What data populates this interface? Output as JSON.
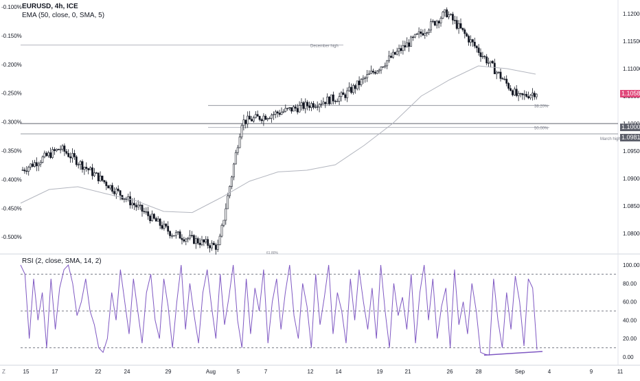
{
  "header": {
    "symbol": "EURUSD, 4h, ICE",
    "indicator": "EMA (50, close, 0, SMA, 5)",
    "rsi_title": "RSI (2, close, SMA, 14, 2)"
  },
  "badges": {
    "price": "1.10580",
    "level1": "1.10000",
    "level2": "1.09813",
    "price_color": "#e0487a",
    "level_color": "#5d606b"
  },
  "annotations": {
    "december_high": "December high",
    "fib_382": "38.20%",
    "fib_50": "50.00%",
    "march_high": "March high",
    "fib_low": "61.80%"
  },
  "chart_data": [
    {
      "type": "candlestick",
      "title": "EURUSD, 4h, ICE",
      "y_right_ticks": [
        "1.12000",
        "1.11500",
        "1.11000",
        "1.10500",
        "1.10000",
        "1.09500",
        "1.09000",
        "1.08500",
        "1.08000"
      ],
      "y_left_ticks": [
        "-0.100%",
        "-0.150%",
        "-0.200%",
        "-0.250%",
        "-0.300%",
        "-0.350%",
        "-0.400%",
        "-0.450%",
        "-0.500%"
      ],
      "ylim": [
        1.0765,
        1.1215
      ],
      "x_tick_labels": [
        "15",
        "17",
        "22",
        "24",
        "29",
        "Aug",
        "5",
        "7",
        "12",
        "14",
        "19",
        "21",
        "26",
        "28",
        "Sep",
        "4",
        "9",
        "11"
      ],
      "levels": [
        {
          "name": "December high",
          "price": 1.1143
        },
        {
          "name": "38.20%",
          "price": 1.1033
        },
        {
          "name": "50.00%",
          "price": 1.0993
        },
        {
          "name": "March high",
          "price": 1.09813
        },
        {
          "name": "1.10000",
          "price": 1.1
        }
      ],
      "key_points": [
        {
          "label": "start",
          "price": 1.0915
        },
        {
          "label": "mid-July high",
          "price": 1.0955
        },
        {
          "label": "late-July low",
          "price": 1.08
        },
        {
          "label": "early-Aug low",
          "price": 1.0775
        },
        {
          "label": "Aug 5 spike",
          "price": 1.1003
        },
        {
          "label": "Aug 14 high",
          "price": 1.105
        },
        {
          "label": "Aug 26 high",
          "price": 1.1202
        },
        {
          "label": "Sep 2 low",
          "price": 1.1047
        },
        {
          "label": "last",
          "price": 1.1058
        }
      ],
      "ema_series": {
        "name": "EMA (50, close, 0, SMA, 5)",
        "values": [
          1.0855,
          1.088,
          1.0885,
          1.0872,
          1.086,
          1.084,
          1.0838,
          1.0865,
          1.0895,
          1.0912,
          1.0915,
          1.0925,
          1.096,
          1.1,
          1.105,
          1.108,
          1.1105,
          1.11,
          1.109
        ]
      }
    },
    {
      "type": "line",
      "title": "RSI (2, close, SMA, 14, 2)",
      "y_ticks": [
        "100.00",
        "80.00",
        "60.00",
        "40.00",
        "20.00",
        "0.00"
      ],
      "ylim": [
        0,
        100
      ],
      "levels": [
        90,
        50,
        10
      ],
      "series": [
        {
          "name": "RSI (2, close, SMA, 14, 2)",
          "values": [
            100,
            90,
            20,
            85,
            40,
            70,
            10,
            85,
            30,
            75,
            95,
            100,
            80,
            45,
            60,
            85,
            50,
            35,
            10,
            5,
            20,
            70,
            40,
            95,
            60,
            25,
            85,
            50,
            15,
            70,
            90,
            40,
            20,
            85,
            55,
            10,
            60,
            100,
            30,
            80,
            45,
            15,
            70,
            95,
            55,
            20,
            90,
            35,
            65,
            100,
            40,
            10,
            85,
            25,
            75,
            50,
            95,
            15,
            60,
            85,
            30,
            70,
            100,
            45,
            20,
            80,
            55,
            10,
            90,
            35,
            65,
            100,
            25,
            70,
            50,
            15,
            85,
            40,
            95,
            60,
            30,
            75,
            20,
            100,
            50,
            10,
            80,
            45,
            65,
            30,
            90,
            15,
            70,
            100,
            40,
            85,
            20,
            55,
            75,
            10,
            95,
            35,
            60,
            25,
            80,
            50,
            5,
            3,
            2,
            85,
            40,
            10,
            70,
            30,
            88,
            60,
            12,
            85,
            75,
            8
          ]
        }
      ],
      "divergence_line": {
        "from": 2,
        "to": 6
      }
    }
  ]
}
